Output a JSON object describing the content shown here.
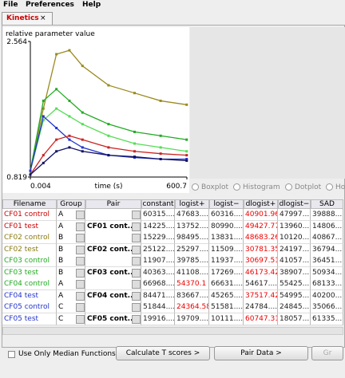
{
  "menu": [
    "File",
    "Preferences",
    "Help"
  ],
  "tab": {
    "title": "Kinetics",
    "close": "×"
  },
  "plot": {
    "type": "line",
    "ylabel": "relative parameter value",
    "xlabel": "time (s)",
    "xlim": [
      0.004,
      600.7
    ],
    "ylim": [
      0.819,
      2.564
    ],
    "xticks": [
      0.004,
      600.7
    ],
    "yticks": [
      0.819,
      2.564
    ],
    "x": [
      0,
      50,
      100,
      150,
      200,
      300,
      400,
      500,
      600
    ],
    "series": [
      {
        "color": "#9a8a1e",
        "values": [
          0.9,
          1.7,
          2.4,
          2.45,
          2.25,
          2.0,
          1.9,
          1.8,
          1.75
        ]
      },
      {
        "color": "#22aa22",
        "values": [
          0.9,
          1.8,
          1.95,
          1.8,
          1.65,
          1.5,
          1.4,
          1.35,
          1.3
        ]
      },
      {
        "color": "#55dd55",
        "values": [
          0.9,
          1.55,
          1.7,
          1.6,
          1.5,
          1.35,
          1.25,
          1.2,
          1.15
        ]
      },
      {
        "color": "#2233cc",
        "values": [
          0.9,
          1.6,
          1.45,
          1.3,
          1.2,
          1.1,
          1.07,
          1.05,
          1.05
        ]
      },
      {
        "color": "#cc2222",
        "values": [
          0.85,
          1.1,
          1.3,
          1.35,
          1.3,
          1.2,
          1.15,
          1.12,
          1.1
        ]
      },
      {
        "color": "#111166",
        "values": [
          0.85,
          1.0,
          1.15,
          1.2,
          1.15,
          1.1,
          1.08,
          1.05,
          1.03
        ]
      }
    ]
  },
  "radios": [
    "Boxplot",
    "Histogram",
    "Dotplot",
    "Ho"
  ],
  "table": {
    "columns": [
      "Filename",
      "Group",
      "Pair",
      "constant",
      "logist+",
      "logist−",
      "dlogist+",
      "dlogist−",
      "SAD"
    ],
    "rows": [
      {
        "filename": "CF01 control",
        "color": "#cc0000",
        "group": "A",
        "pair": "",
        "values": [
          "60315....",
          "47683....",
          "60316....",
          "40901.96",
          "47997....",
          "39888...."
        ],
        "highlight": 3
      },
      {
        "filename": "CF01 test",
        "color": "#cc0000",
        "group": "A",
        "pair": "CF01 cont...",
        "values": [
          "14225....",
          "13752....",
          "80990....",
          "49427.77",
          "13960....",
          "14806...."
        ],
        "highlight": 3
      },
      {
        "filename": "CF02 control",
        "color": "#8a7a10",
        "group": "B",
        "pair": "",
        "values": [
          "15229....",
          "98495....",
          "13831....",
          "48683.26",
          "10120....",
          "40867...."
        ],
        "highlight": 3
      },
      {
        "filename": "CF02 test",
        "color": "#8a7a10",
        "group": "B",
        "pair": "CF02 cont...",
        "values": [
          "25122....",
          "25297....",
          "11509....",
          "30781.35",
          "24197....",
          "36794...."
        ],
        "highlight": 3
      },
      {
        "filename": "CF03 control",
        "color": "#22aa22",
        "group": "B",
        "pair": "",
        "values": [
          "11907....",
          "39785....",
          "11937....",
          "30697.51",
          "41057....",
          "36451...."
        ],
        "highlight": 3
      },
      {
        "filename": "CF03 test",
        "color": "#22aa22",
        "group": "B",
        "pair": "CF03 cont...",
        "values": [
          "40363....",
          "41108....",
          "17269....",
          "46173.42",
          "38907....",
          "50934...."
        ],
        "highlight": 3
      },
      {
        "filename": "CF04 control",
        "color": "#22aa22",
        "group": "A",
        "pair": "",
        "values": [
          "66968....",
          "54370.1",
          "66631....",
          "54617....",
          "55425....",
          "68133...."
        ],
        "highlight": 1
      },
      {
        "filename": "CF04 test",
        "color": "#2233cc",
        "group": "A",
        "pair": "CF04 cont...",
        "values": [
          "84471....",
          "83667....",
          "45265....",
          "37517.42",
          "54995....",
          "40200...."
        ],
        "highlight": 3
      },
      {
        "filename": "CF05 control",
        "color": "#2233cc",
        "group": "C",
        "pair": "",
        "values": [
          "51844....",
          "24364.58",
          "51581....",
          "24784....",
          "24845....",
          "35066...."
        ],
        "highlight": 1
      },
      {
        "filename": "CF05 test",
        "color": "#2233cc",
        "group": "C",
        "pair": "CF05 cont...",
        "values": [
          "19916....",
          "19709....",
          "10111....",
          "60747.31",
          "18057....",
          "61335...."
        ],
        "highlight": 3
      }
    ]
  },
  "footer": {
    "checkbox": "Use Only Median Functions",
    "buttons": [
      "Calculate T scores >",
      "Pair Data >",
      "Gr"
    ]
  }
}
